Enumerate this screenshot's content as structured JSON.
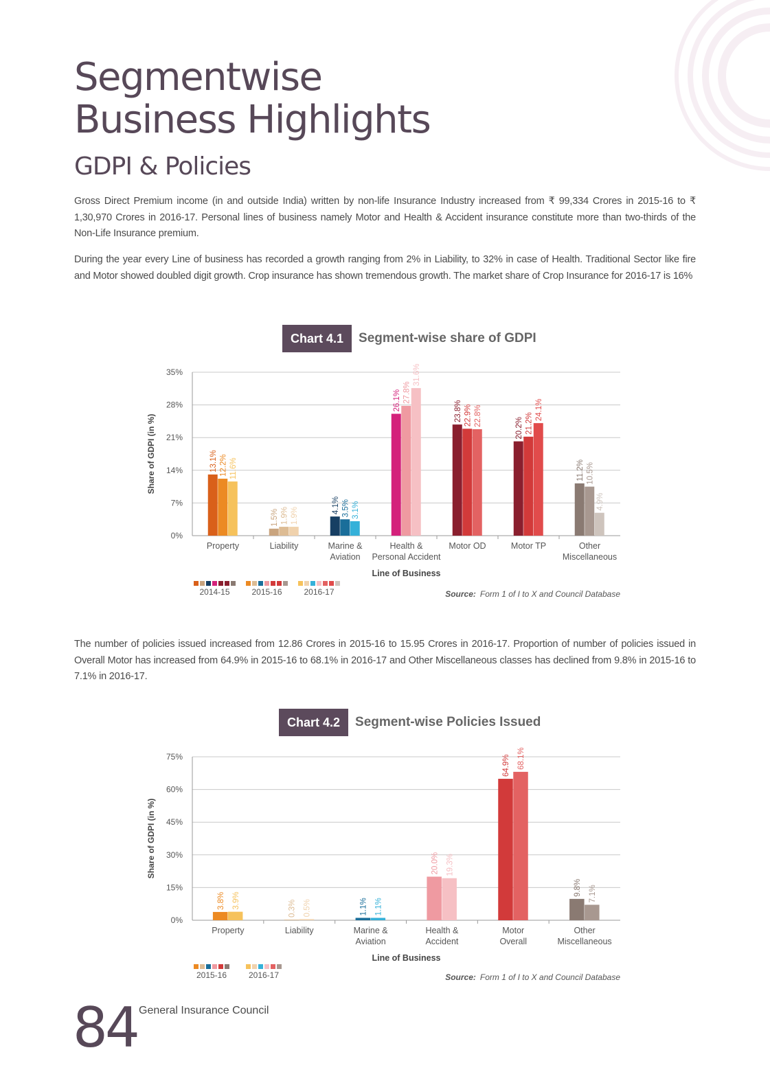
{
  "header": {
    "title_line1": "Segmentwise",
    "title_line2": "Business Highlights",
    "subtitle": "GDPI & Policies"
  },
  "paragraphs": {
    "p1": "Gross Direct Premium income (in and outside India) written by non-life Insurance Industry increased from ₹ 99,334 Crores in 2015-16 to ₹ 1,30,970 Crores in 2016-17. Personal lines of business namely Motor and Health & Accident insurance constitute more than two-thirds of the Non-Life Insurance premium.",
    "p2": "During the year every Line of business has recorded a growth ranging from 2% in Liability, to 32% in case of Health. Traditional Sector like fire and Motor showed doubled digit growth. Crop insurance has shown tremendous growth. The market share of Crop Insurance for 2016-17 is 16%",
    "p3": "The number of policies issued increased from 12.86 Crores in 2015-16 to 15.95 Crores in 2016-17. Proportion of number of policies issued in Overall Motor has increased from 64.9% in 2015-16 to 68.1% in 2016-17 and Other Miscellaneous classes has declined from 9.8% in 2015-16 to 7.1% in 2016-17."
  },
  "chart1_header": {
    "tag": "Chart 4.1",
    "name": "Segment-wise share of GDPI"
  },
  "chart2_header": {
    "tag": "Chart 4.2",
    "name": "Segment-wise Policies Issued"
  },
  "source": {
    "label": "Source:",
    "text": "Form 1 of I to X and Council Database"
  },
  "footer": {
    "page_number": "84",
    "publisher": "General Insurance Council"
  },
  "chart_data": [
    {
      "type": "bar",
      "xlabel": "Line of Business",
      "ylabel": "Share of GDPI (in %)",
      "ylim": [
        0,
        35
      ],
      "yticks": [
        "0%",
        "7%",
        "14%",
        "21%",
        "28%",
        "35%"
      ],
      "ytick_values": [
        0,
        7,
        14,
        21,
        28,
        35
      ],
      "grid": true,
      "legend_position": "bottom-left",
      "categories": [
        [
          "Property"
        ],
        [
          "Liability"
        ],
        [
          "Marine &",
          "Aviation"
        ],
        [
          "Health &",
          "Personal Accident"
        ],
        [
          "Motor OD"
        ],
        [
          "Motor TP"
        ],
        [
          "Other",
          "Miscellaneous"
        ]
      ],
      "series": [
        {
          "name": "2014-15",
          "values": [
            13.1,
            1.5,
            4.1,
            26.1,
            23.8,
            20.2,
            11.2
          ],
          "labels": [
            "13.1%",
            "1.5%",
            "4.1%",
            "26.1%",
            "23.8%",
            "20.2%",
            "11.2%"
          ],
          "colors": [
            "#d9601a",
            "#c9a47e",
            "#173f63",
            "#d4217b",
            "#8a1f2e",
            "#8a1f2e",
            "#8a7a72"
          ]
        },
        {
          "name": "2015-16",
          "values": [
            12.2,
            1.9,
            3.5,
            27.8,
            22.9,
            21.2,
            10.5
          ],
          "labels": [
            "12.2%",
            "1.9%",
            "3.5%",
            "27.8%",
            "22.9%",
            "21.2%",
            "10.5%"
          ],
          "colors": [
            "#ec8a23",
            "#ddbc94",
            "#1a6e9a",
            "#ef9aa1",
            "#d23a3a",
            "#d23a3a",
            "#a89890"
          ]
        },
        {
          "name": "2016-17",
          "values": [
            11.6,
            1.9,
            3.1,
            31.6,
            22.8,
            24.1,
            4.9
          ],
          "labels": [
            "11.6%",
            "1.9%",
            "3.1%",
            "31.6%",
            "22.8%",
            "24.1%",
            "4.9%"
          ],
          "colors": [
            "#f6c25c",
            "#f0d2ad",
            "#35b1d9",
            "#f6c0c4",
            "#e36262",
            "#e14b4b",
            "#cec4bd"
          ]
        }
      ],
      "legend_swatches": [
        [
          "#d9601a",
          "#c9a47e",
          "#173f63",
          "#d4217b",
          "#8a1f2e",
          "#8a1f2e",
          "#8a7a72"
        ],
        [
          "#ec8a23",
          "#ddbc94",
          "#1a6e9a",
          "#ef9aa1",
          "#d23a3a",
          "#d23a3a",
          "#a89890"
        ],
        [
          "#f6c25c",
          "#f0d2ad",
          "#35b1d9",
          "#f6c0c4",
          "#e36262",
          "#e14b4b",
          "#cec4bd"
        ]
      ]
    },
    {
      "type": "bar",
      "xlabel": "Line of Business",
      "ylabel": "Share of GDPI (in %)",
      "ylim": [
        0,
        75
      ],
      "yticks": [
        "0%",
        "15%",
        "30%",
        "45%",
        "60%",
        "75%"
      ],
      "ytick_values": [
        0,
        15,
        30,
        45,
        60,
        75
      ],
      "grid": true,
      "legend_position": "bottom-left",
      "categories": [
        [
          "Property"
        ],
        [
          "Liability"
        ],
        [
          "Marine &",
          "Aviation"
        ],
        [
          "Health &",
          "Accident"
        ],
        [
          "Motor",
          "Overall"
        ],
        [
          "Other",
          "Miscellaneous"
        ]
      ],
      "series": [
        {
          "name": "2015-16",
          "values": [
            3.8,
            0.3,
            1.1,
            20.0,
            64.9,
            9.8
          ],
          "labels": [
            "3.8%",
            "0.3%",
            "1.1%",
            "20.0%",
            "64.9%",
            "9.8%"
          ],
          "colors": [
            "#ec8a23",
            "#ddbc94",
            "#1a6e9a",
            "#ef9aa1",
            "#d23a3a",
            "#8a7a72"
          ]
        },
        {
          "name": "2016-17",
          "values": [
            3.9,
            0.5,
            1.1,
            19.3,
            68.1,
            7.1
          ],
          "labels": [
            "3.9%",
            "0.5%",
            "1.1%",
            "19.3%",
            "68.1%",
            "7.1%"
          ],
          "colors": [
            "#f6c25c",
            "#f0d2ad",
            "#35b1d9",
            "#f6c0c4",
            "#e36262",
            "#a89890"
          ]
        }
      ],
      "legend_swatches": [
        [
          "#ec8a23",
          "#ddbc94",
          "#1a6e9a",
          "#ef9aa1",
          "#d23a3a",
          "#8a7a72"
        ],
        [
          "#f6c25c",
          "#f0d2ad",
          "#35b1d9",
          "#f6c0c4",
          "#e36262",
          "#a89890"
        ]
      ]
    }
  ]
}
